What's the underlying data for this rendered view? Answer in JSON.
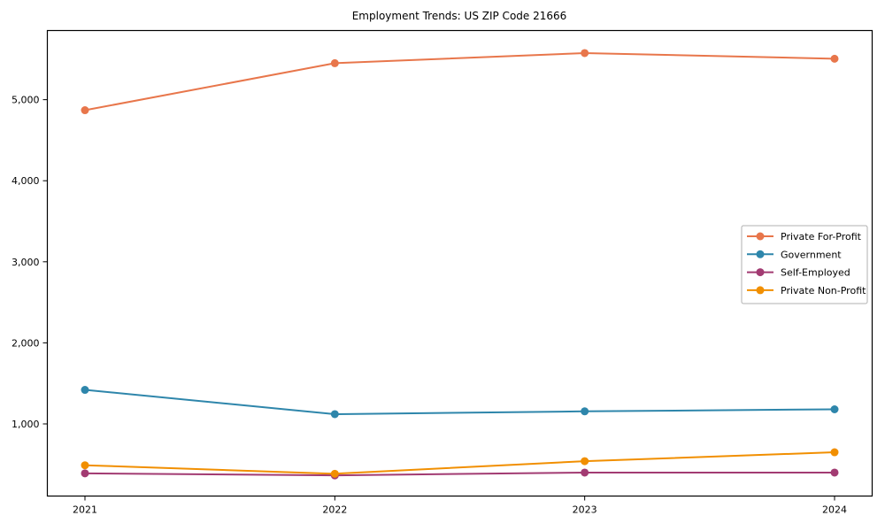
{
  "chart_data": {
    "type": "line",
    "title": "Employment Trends: US ZIP Code 21666",
    "xlabel": "",
    "ylabel": "",
    "categories": [
      "2021",
      "2022",
      "2023",
      "2024"
    ],
    "x": [
      2021,
      2022,
      2023,
      2024
    ],
    "series": [
      {
        "name": "Private For-Profit",
        "color": "#E8764B",
        "values": [
          4870,
          5450,
          5575,
          5505
        ]
      },
      {
        "name": "Government",
        "color": "#2E86AB",
        "values": [
          1420,
          1120,
          1155,
          1180
        ]
      },
      {
        "name": "Self-Employed",
        "color": "#A23B72",
        "values": [
          390,
          365,
          400,
          400
        ]
      },
      {
        "name": "Private Non-Profit",
        "color": "#F18F01",
        "values": [
          490,
          385,
          540,
          650
        ]
      }
    ],
    "ylim": [
      110,
      5853
    ],
    "yticks": [
      1000,
      2000,
      3000,
      4000,
      5000
    ],
    "ytick_labels": [
      "1,000",
      "2,000",
      "3,000",
      "4,000",
      "5,000"
    ],
    "grid": false,
    "legend_position": "center-right",
    "axis_color": "#000000",
    "background_color": "#ffffff",
    "legend_border_color": "#b0b0b0"
  }
}
